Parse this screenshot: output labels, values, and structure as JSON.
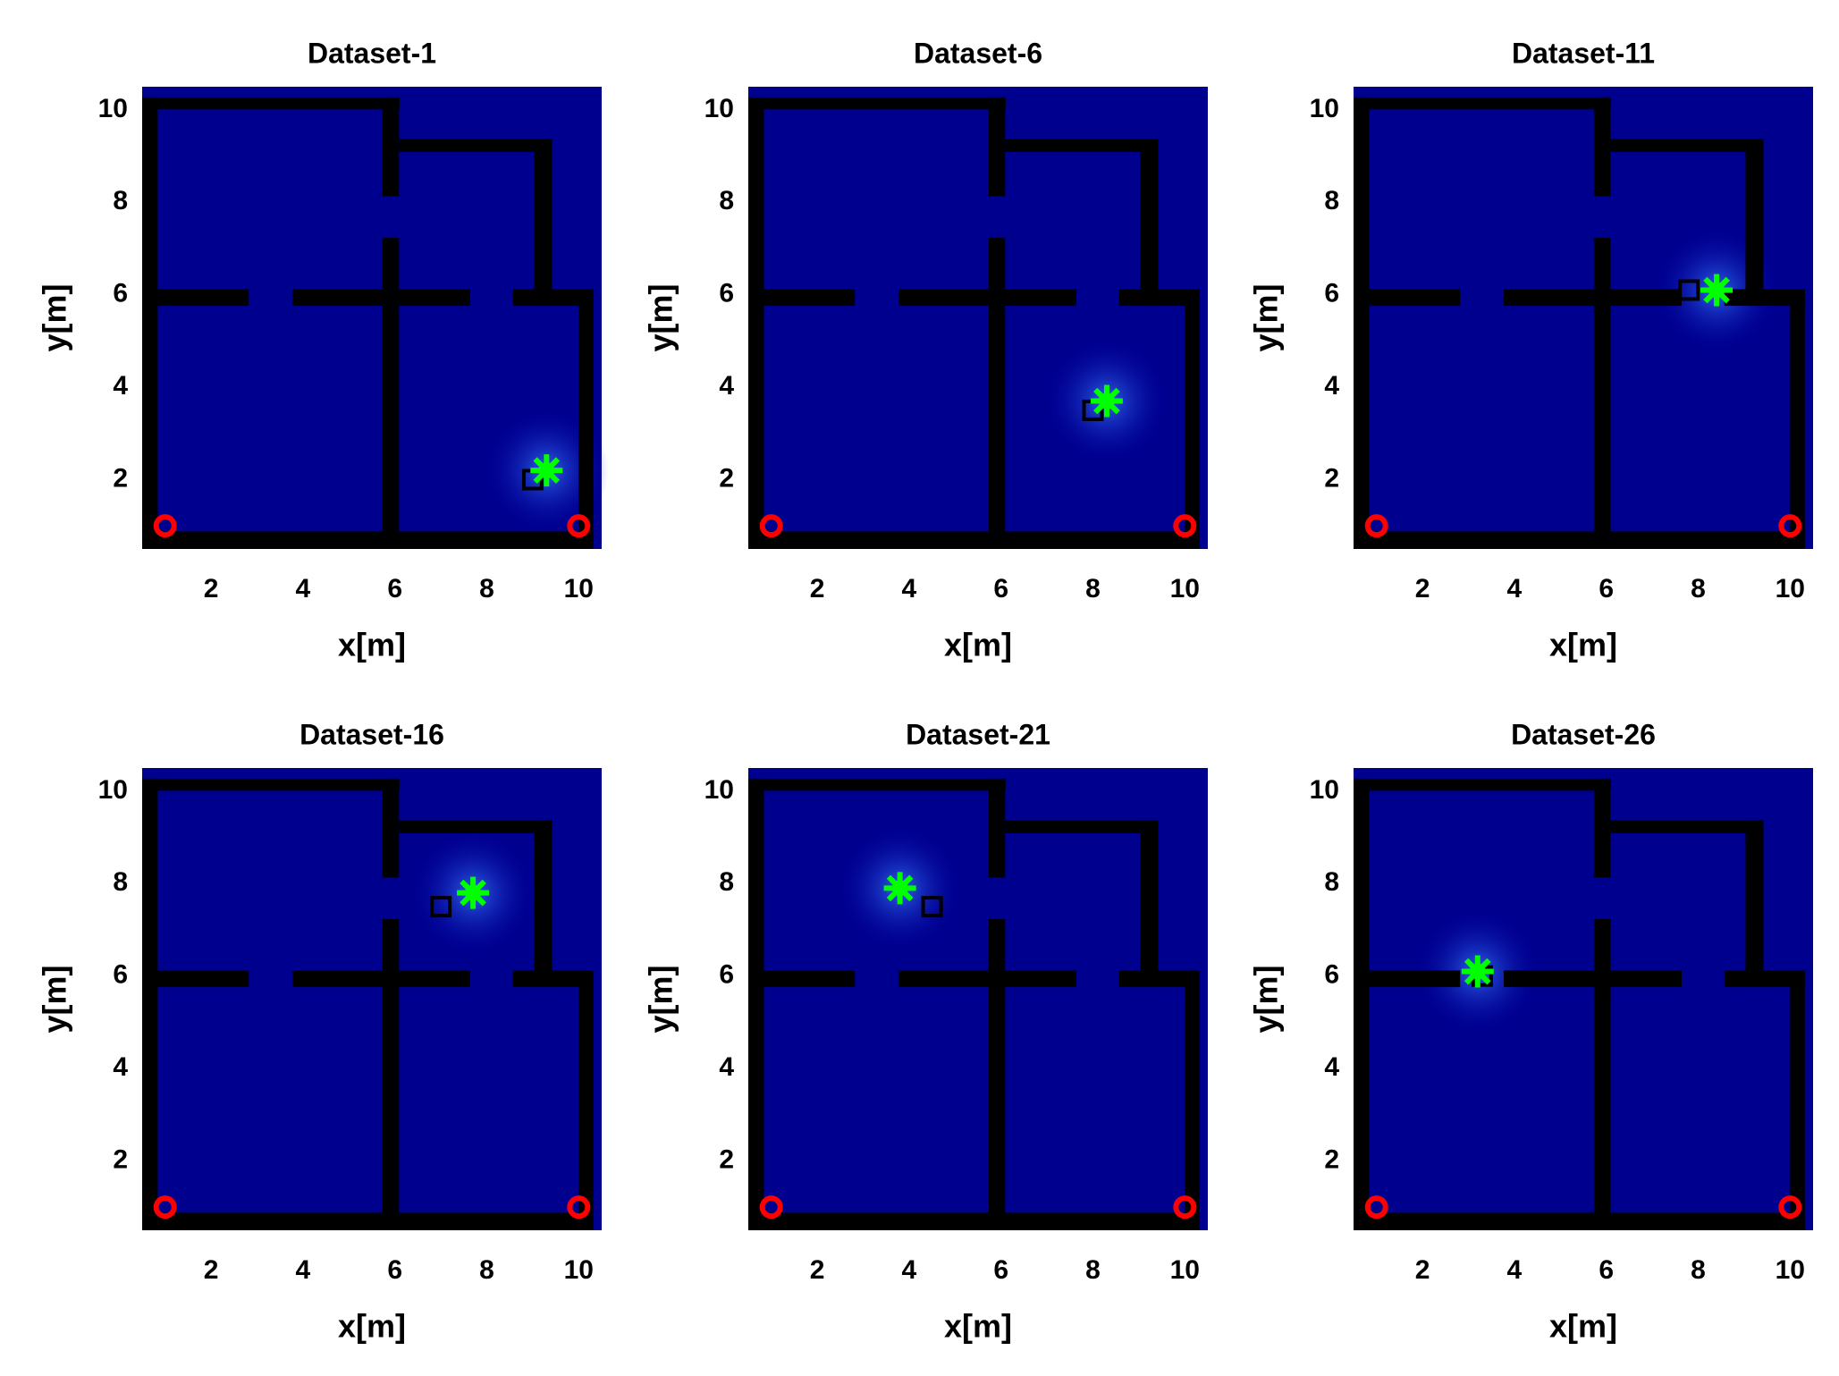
{
  "chart_data": [
    {
      "type": "scatter",
      "title": "Dataset-1",
      "xlabel": "x[m]",
      "ylabel": "y[m]",
      "xlim": [
        0.5,
        10.5
      ],
      "ylim": [
        0.5,
        10.5
      ],
      "xticks": [
        2,
        4,
        6,
        8,
        10
      ],
      "yticks": [
        2,
        4,
        6,
        8,
        10
      ],
      "series": [
        {
          "marker": "square",
          "color": "#000000",
          "x": [
            9.0
          ],
          "values": [
            2.0
          ]
        },
        {
          "marker": "star",
          "color": "#00ff00",
          "x": [
            9.3
          ],
          "values": [
            2.2
          ]
        },
        {
          "marker": "circle",
          "color": "#ff0000",
          "x": [
            1,
            10
          ],
          "values": [
            1,
            1
          ]
        }
      ]
    },
    {
      "type": "scatter",
      "title": "Dataset-6",
      "xlabel": "x[m]",
      "ylabel": "y[m]",
      "xlim": [
        0.5,
        10.5
      ],
      "ylim": [
        0.5,
        10.5
      ],
      "xticks": [
        2,
        4,
        6,
        8,
        10
      ],
      "yticks": [
        2,
        4,
        6,
        8,
        10
      ],
      "series": [
        {
          "marker": "square",
          "color": "#000000",
          "x": [
            8.0
          ],
          "values": [
            3.5
          ]
        },
        {
          "marker": "star",
          "color": "#00ff00",
          "x": [
            8.3
          ],
          "values": [
            3.7
          ]
        },
        {
          "marker": "circle",
          "color": "#ff0000",
          "x": [
            1,
            10
          ],
          "values": [
            1,
            1
          ]
        }
      ]
    },
    {
      "type": "scatter",
      "title": "Dataset-11",
      "xlabel": "x[m]",
      "ylabel": "y[m]",
      "xlim": [
        0.5,
        10.5
      ],
      "ylim": [
        0.5,
        10.5
      ],
      "xticks": [
        2,
        4,
        6,
        8,
        10
      ],
      "yticks": [
        2,
        4,
        6,
        8,
        10
      ],
      "series": [
        {
          "marker": "square",
          "color": "#000000",
          "x": [
            7.8
          ],
          "values": [
            6.1
          ]
        },
        {
          "marker": "star",
          "color": "#00ff00",
          "x": [
            8.4
          ],
          "values": [
            6.1
          ]
        },
        {
          "marker": "circle",
          "color": "#ff0000",
          "x": [
            1,
            10
          ],
          "values": [
            1,
            1
          ]
        }
      ]
    },
    {
      "type": "scatter",
      "title": "Dataset-16",
      "xlabel": "x[m]",
      "ylabel": "y[m]",
      "xlim": [
        0.5,
        10.5
      ],
      "ylim": [
        0.5,
        10.5
      ],
      "xticks": [
        2,
        4,
        6,
        8,
        10
      ],
      "yticks": [
        2,
        4,
        6,
        8,
        10
      ],
      "series": [
        {
          "marker": "square",
          "color": "#000000",
          "x": [
            7.0
          ],
          "values": [
            7.5
          ]
        },
        {
          "marker": "star",
          "color": "#00ff00",
          "x": [
            7.7
          ],
          "values": [
            7.8
          ]
        },
        {
          "marker": "circle",
          "color": "#ff0000",
          "x": [
            1,
            10
          ],
          "values": [
            1,
            1
          ]
        }
      ]
    },
    {
      "type": "scatter",
      "title": "Dataset-21",
      "xlabel": "x[m]",
      "ylabel": "y[m]",
      "xlim": [
        0.5,
        10.5
      ],
      "ylim": [
        0.5,
        10.5
      ],
      "xticks": [
        2,
        4,
        6,
        8,
        10
      ],
      "yticks": [
        2,
        4,
        6,
        8,
        10
      ],
      "series": [
        {
          "marker": "square",
          "color": "#000000",
          "x": [
            4.5
          ],
          "values": [
            7.5
          ]
        },
        {
          "marker": "star",
          "color": "#00ff00",
          "x": [
            3.8
          ],
          "values": [
            7.9
          ]
        },
        {
          "marker": "circle",
          "color": "#ff0000",
          "x": [
            1,
            10
          ],
          "values": [
            1,
            1
          ]
        }
      ]
    },
    {
      "type": "scatter",
      "title": "Dataset-26",
      "xlabel": "x[m]",
      "ylabel": "y[m]",
      "xlim": [
        0.5,
        10.5
      ],
      "ylim": [
        0.5,
        10.5
      ],
      "xticks": [
        2,
        4,
        6,
        8,
        10
      ],
      "yticks": [
        2,
        4,
        6,
        8,
        10
      ],
      "series": [
        {
          "marker": "square",
          "color": "#000000",
          "x": [
            3.3
          ],
          "values": [
            6.0
          ]
        },
        {
          "marker": "star",
          "color": "#00ff00",
          "x": [
            3.2
          ],
          "values": [
            6.1
          ]
        },
        {
          "marker": "circle",
          "color": "#ff0000",
          "x": [
            1,
            10
          ],
          "values": [
            1,
            1
          ]
        }
      ]
    }
  ]
}
